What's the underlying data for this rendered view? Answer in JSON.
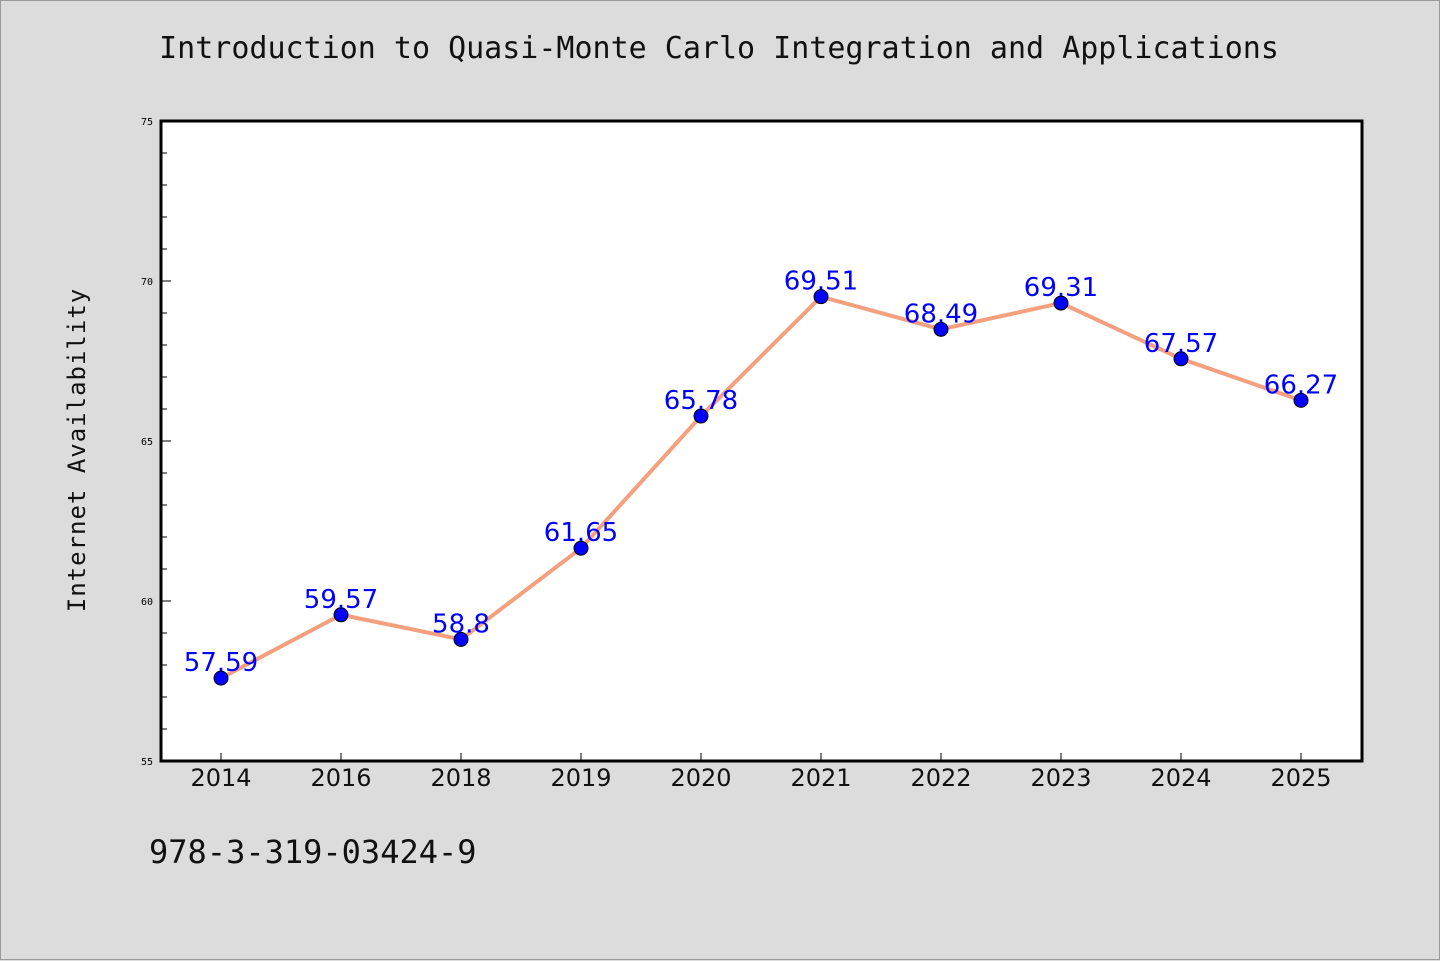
{
  "title": "Introduction to Quasi-Monte Carlo Integration and Applications",
  "footer_text": "978-3-319-03424-9",
  "chart_data": {
    "type": "line",
    "title": "Introduction to Quasi-Monte Carlo Integration and Applications",
    "xlabel": "",
    "ylabel": "Internet Availability",
    "categories": [
      "2014",
      "2016",
      "2018",
      "2019",
      "2020",
      "2021",
      "2022",
      "2023",
      "2024",
      "2025"
    ],
    "series": [
      {
        "values": [
          57.59,
          59.57,
          58.8,
          61.65,
          65.78,
          69.51,
          68.49,
          69.31,
          67.57,
          66.27
        ],
        "data_labels": [
          "57.59",
          "59.57",
          "58.8",
          "61.65",
          "65.78",
          "69.51",
          "68.49",
          "69.31",
          "67.57",
          "66.27"
        ],
        "line_color": "#f4a07e",
        "marker_color": "#0000ff",
        "label_color": "#0000ff"
      }
    ],
    "ylim": [
      55,
      75
    ],
    "y_ticks": [
      "55",
      "60",
      "65",
      "70",
      "75"
    ],
    "y_minor_step": 1,
    "grid": false,
    "legend": "none"
  }
}
